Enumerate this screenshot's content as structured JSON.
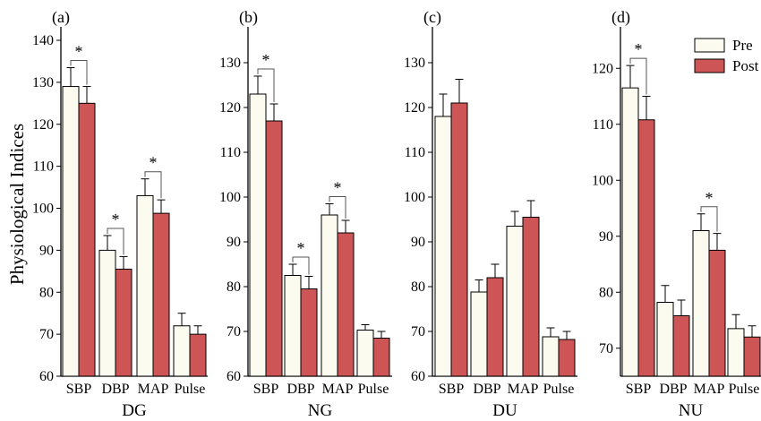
{
  "colors": {
    "pre": "#fbfbf0",
    "post": "#cd5555",
    "axis": "#000000"
  },
  "ylabel": "Physiological Indices",
  "legend": {
    "placement": "top-right",
    "pre_label": "Pre",
    "post_label": "Post"
  },
  "chart_data": [
    {
      "type": "bar",
      "panel_label": "(a)",
      "xlabel": "DG",
      "ylim": [
        60,
        140
      ],
      "yticks": [
        60,
        70,
        80,
        90,
        100,
        110,
        120,
        130,
        140
      ],
      "categories": [
        "SBP",
        "DBP",
        "MAP",
        "Pulse"
      ],
      "series": [
        {
          "name": "Pre",
          "values": [
            129,
            90,
            103,
            72
          ],
          "errors": [
            4.5,
            3.5,
            4,
            3
          ]
        },
        {
          "name": "Post",
          "values": [
            125,
            85.5,
            98.8,
            70
          ],
          "errors": [
            4,
            3,
            3.2,
            2
          ]
        }
      ],
      "significance": [
        {
          "category": "SBP",
          "label": "*"
        },
        {
          "category": "DBP",
          "label": "*"
        },
        {
          "category": "MAP",
          "label": "*"
        }
      ]
    },
    {
      "type": "bar",
      "panel_label": "(b)",
      "xlabel": "NG",
      "ylim": [
        60,
        135
      ],
      "yticks": [
        60,
        70,
        80,
        90,
        100,
        110,
        120,
        130
      ],
      "categories": [
        "SBP",
        "DBP",
        "MAP",
        "Pulse"
      ],
      "series": [
        {
          "name": "Pre",
          "values": [
            123,
            82.5,
            96,
            70.3
          ],
          "errors": [
            4,
            2.5,
            2.5,
            1.2
          ]
        },
        {
          "name": "Post",
          "values": [
            117,
            79.5,
            92,
            68.5
          ],
          "errors": [
            3.8,
            2.8,
            2.8,
            1.5
          ]
        }
      ],
      "significance": [
        {
          "category": "SBP",
          "label": "*"
        },
        {
          "category": "DBP",
          "label": "*"
        },
        {
          "category": "MAP",
          "label": "*"
        }
      ]
    },
    {
      "type": "bar",
      "panel_label": "(c)",
      "xlabel": "DU",
      "ylim": [
        60,
        135
      ],
      "yticks": [
        60,
        70,
        80,
        90,
        100,
        110,
        120,
        130
      ],
      "categories": [
        "SBP",
        "DBP",
        "MAP",
        "Pulse"
      ],
      "series": [
        {
          "name": "Pre",
          "values": [
            118,
            78.8,
            93.5,
            68.8
          ],
          "errors": [
            5,
            2.7,
            3.3,
            2
          ]
        },
        {
          "name": "Post",
          "values": [
            121,
            82,
            95.5,
            68.2
          ],
          "errors": [
            5.3,
            3,
            3.7,
            1.8
          ]
        }
      ],
      "significance": []
    },
    {
      "type": "bar",
      "panel_label": "(d)",
      "xlabel": "NU",
      "ylim": [
        65,
        125
      ],
      "yticks": [
        70,
        80,
        90,
        100,
        110,
        120
      ],
      "categories": [
        "SBP",
        "DBP",
        "MAP",
        "Pulse"
      ],
      "series": [
        {
          "name": "Pre",
          "values": [
            116.5,
            78.2,
            91,
            73.5
          ],
          "errors": [
            4,
            3,
            3,
            2.5
          ]
        },
        {
          "name": "Post",
          "values": [
            110.8,
            75.8,
            87.5,
            72
          ],
          "errors": [
            4.2,
            2.8,
            3,
            2
          ]
        }
      ],
      "significance": [
        {
          "category": "SBP",
          "label": "*"
        },
        {
          "category": "MAP",
          "label": "*"
        }
      ]
    }
  ]
}
